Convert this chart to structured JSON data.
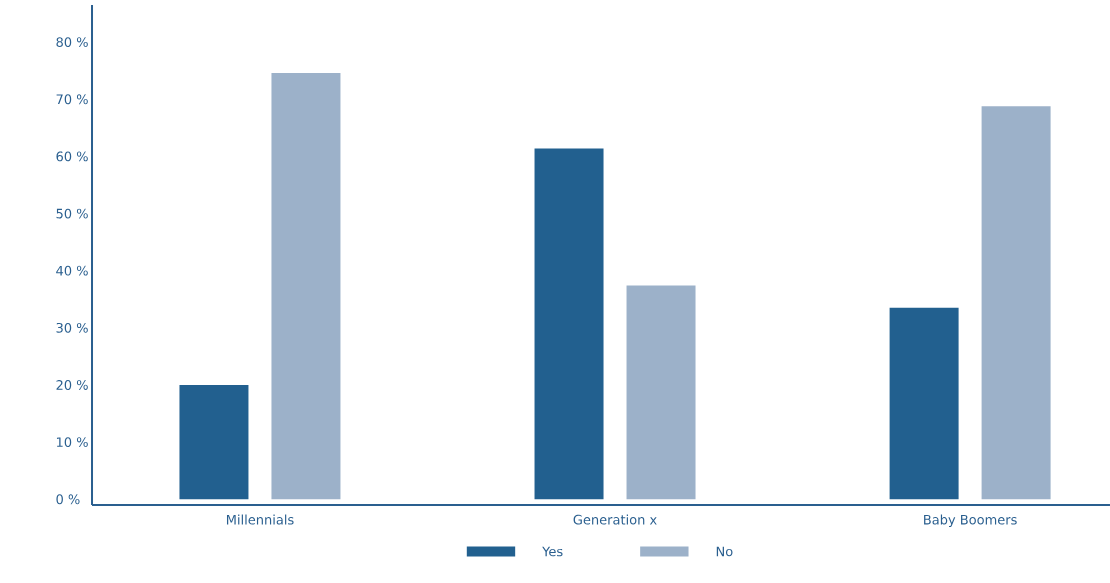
{
  "chart_data": {
    "type": "bar",
    "categories": [
      "Millennials",
      "Generation x",
      "Baby Boomers"
    ],
    "series": [
      {
        "name": "Yes",
        "color": "#22608f",
        "values": [
          20,
          61.4,
          33.5
        ]
      },
      {
        "name": "No",
        "color": "#9cb1c9",
        "values": [
          74.6,
          37.4,
          68.8
        ]
      }
    ],
    "ylim": [
      -1,
      86.5
    ],
    "yticks": [
      {
        "value": 0,
        "label": "0 %"
      },
      {
        "value": 10,
        "label": "10 %"
      },
      {
        "value": 20,
        "label": "20 %"
      },
      {
        "value": 30,
        "label": "30 %"
      },
      {
        "value": 40,
        "label": "40 %"
      },
      {
        "value": 50,
        "label": "50 %"
      },
      {
        "value": 60,
        "label": "60 %"
      },
      {
        "value": 70,
        "label": "70 %"
      },
      {
        "value": 80,
        "label": "80 %"
      }
    ],
    "legend": "bottom"
  }
}
